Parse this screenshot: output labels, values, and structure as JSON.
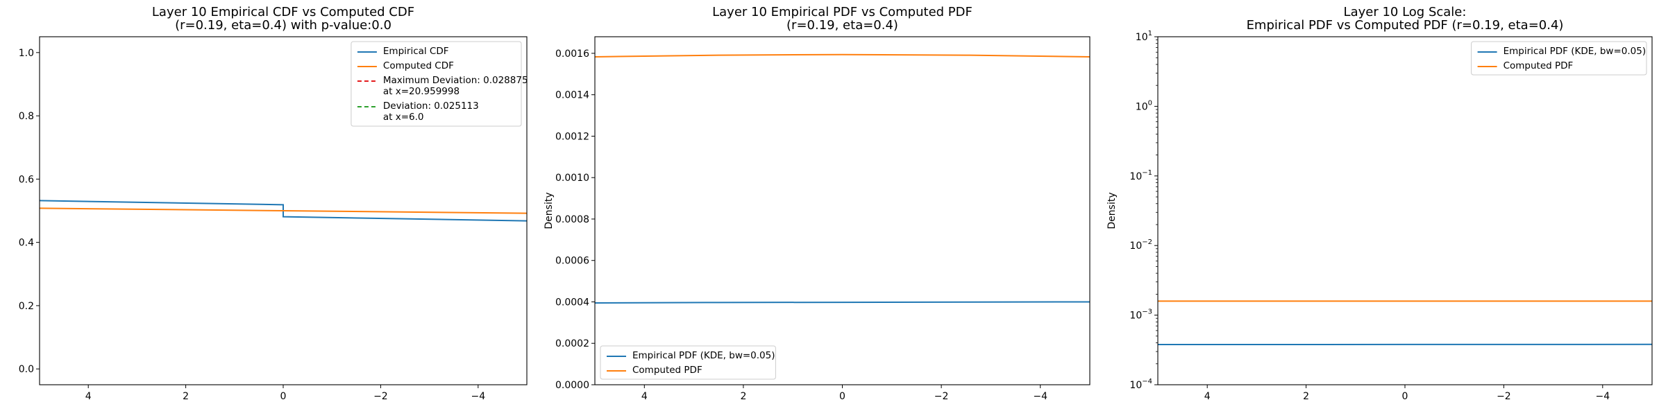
{
  "chart_data": [
    {
      "type": "line",
      "title": [
        "Layer 10 Empirical CDF vs Computed CDF",
        "(r=0.19, eta=0.4) with p-value:0.0"
      ],
      "xlabel": "",
      "ylabel": "",
      "xlim": [
        5,
        -5
      ],
      "ylim": [
        -0.05,
        1.05
      ],
      "y_scale": "linear",
      "xticks": [
        4,
        2,
        0,
        -2,
        -4
      ],
      "xtick_labels": [
        "4",
        "2",
        "0",
        "−2",
        "−4"
      ],
      "yticks": [
        0.0,
        0.2,
        0.4,
        0.6,
        0.8,
        1.0
      ],
      "ytick_labels": [
        "0.0",
        "0.2",
        "0.4",
        "0.6",
        "0.8",
        "1.0"
      ],
      "legend_position": "upper right",
      "series": [
        {
          "name": "Empirical CDF",
          "color": "#1f77b4",
          "style": "solid",
          "x": [
            5,
            0,
            0,
            -5
          ],
          "y": [
            0.532,
            0.519,
            0.481,
            0.468
          ]
        },
        {
          "name": "Computed CDF",
          "color": "#ff7f0e",
          "style": "solid",
          "x": [
            5,
            0,
            -5
          ],
          "y": [
            0.508,
            0.5,
            0.492
          ]
        },
        {
          "name": [
            "Maximum Deviation: 0.028875",
            "at x=20.959998"
          ],
          "color": "#e41a1c",
          "style": "dashed",
          "x": [],
          "y": []
        },
        {
          "name": [
            "Deviation: 0.025113",
            "at x=6.0"
          ],
          "color": "#2ca02c",
          "style": "dashed",
          "x": [],
          "y": []
        }
      ]
    },
    {
      "type": "line",
      "title": [
        "Layer 10 Empirical PDF vs Computed PDF",
        "(r=0.19, eta=0.4)"
      ],
      "xlabel": "",
      "ylabel": "Density",
      "xlim": [
        5,
        -5
      ],
      "ylim": [
        0,
        0.00168
      ],
      "y_scale": "linear",
      "xticks": [
        4,
        2,
        0,
        -2,
        -4
      ],
      "xtick_labels": [
        "4",
        "2",
        "0",
        "−2",
        "−4"
      ],
      "yticks": [
        0,
        0.0002,
        0.0004,
        0.0006,
        0.0008,
        0.001,
        0.0012,
        0.0014,
        0.0016
      ],
      "ytick_labels": [
        "0.0000",
        "0.0002",
        "0.0004",
        "0.0006",
        "0.0008",
        "0.0010",
        "0.0012",
        "0.0014",
        "0.0016"
      ],
      "legend_position": "lower left",
      "series": [
        {
          "name": "Empirical PDF (KDE, bw=0.05)",
          "color": "#1f77b4",
          "style": "solid",
          "x": [
            5,
            2.5,
            0,
            -2.5,
            -5
          ],
          "y": [
            0.000395,
            0.000397,
            0.000398,
            0.000399,
            0.0004
          ]
        },
        {
          "name": "Computed PDF",
          "color": "#ff7f0e",
          "style": "solid",
          "x": [
            5,
            2.5,
            0,
            -2.5,
            -5
          ],
          "y": [
            0.001583,
            0.001591,
            0.001594,
            0.001591,
            0.001583
          ]
        }
      ]
    },
    {
      "type": "line",
      "title": [
        "Layer 10 Log Scale:",
        "Empirical PDF vs Computed PDF (r=0.19, eta=0.4)"
      ],
      "xlabel": "",
      "ylabel": "Density",
      "xlim": [
        5,
        -5
      ],
      "ylim": [
        0.0001,
        10
      ],
      "y_scale": "log",
      "xticks": [
        4,
        2,
        0,
        -2,
        -4
      ],
      "xtick_labels": [
        "4",
        "2",
        "0",
        "−2",
        "−4"
      ],
      "yticks": [
        0.0001,
        0.001,
        0.01,
        0.1,
        1,
        10
      ],
      "ytick_labels": [
        [
          "10",
          "−4"
        ],
        [
          "10",
          "−3"
        ],
        [
          "10",
          "−2"
        ],
        [
          "10",
          "−1"
        ],
        [
          "10",
          "0"
        ],
        [
          "10",
          "1"
        ]
      ],
      "legend_position": "upper right",
      "series": [
        {
          "name": "Empirical PDF (KDE, bw=0.05)",
          "color": "#1f77b4",
          "style": "solid",
          "x": [
            5,
            0,
            -5
          ],
          "y": [
            0.000378,
            0.000379,
            0.00038
          ]
        },
        {
          "name": "Computed PDF",
          "color": "#ff7f0e",
          "style": "solid",
          "x": [
            5,
            0,
            -5
          ],
          "y": [
            0.00159,
            0.00159,
            0.00159
          ]
        }
      ]
    }
  ]
}
